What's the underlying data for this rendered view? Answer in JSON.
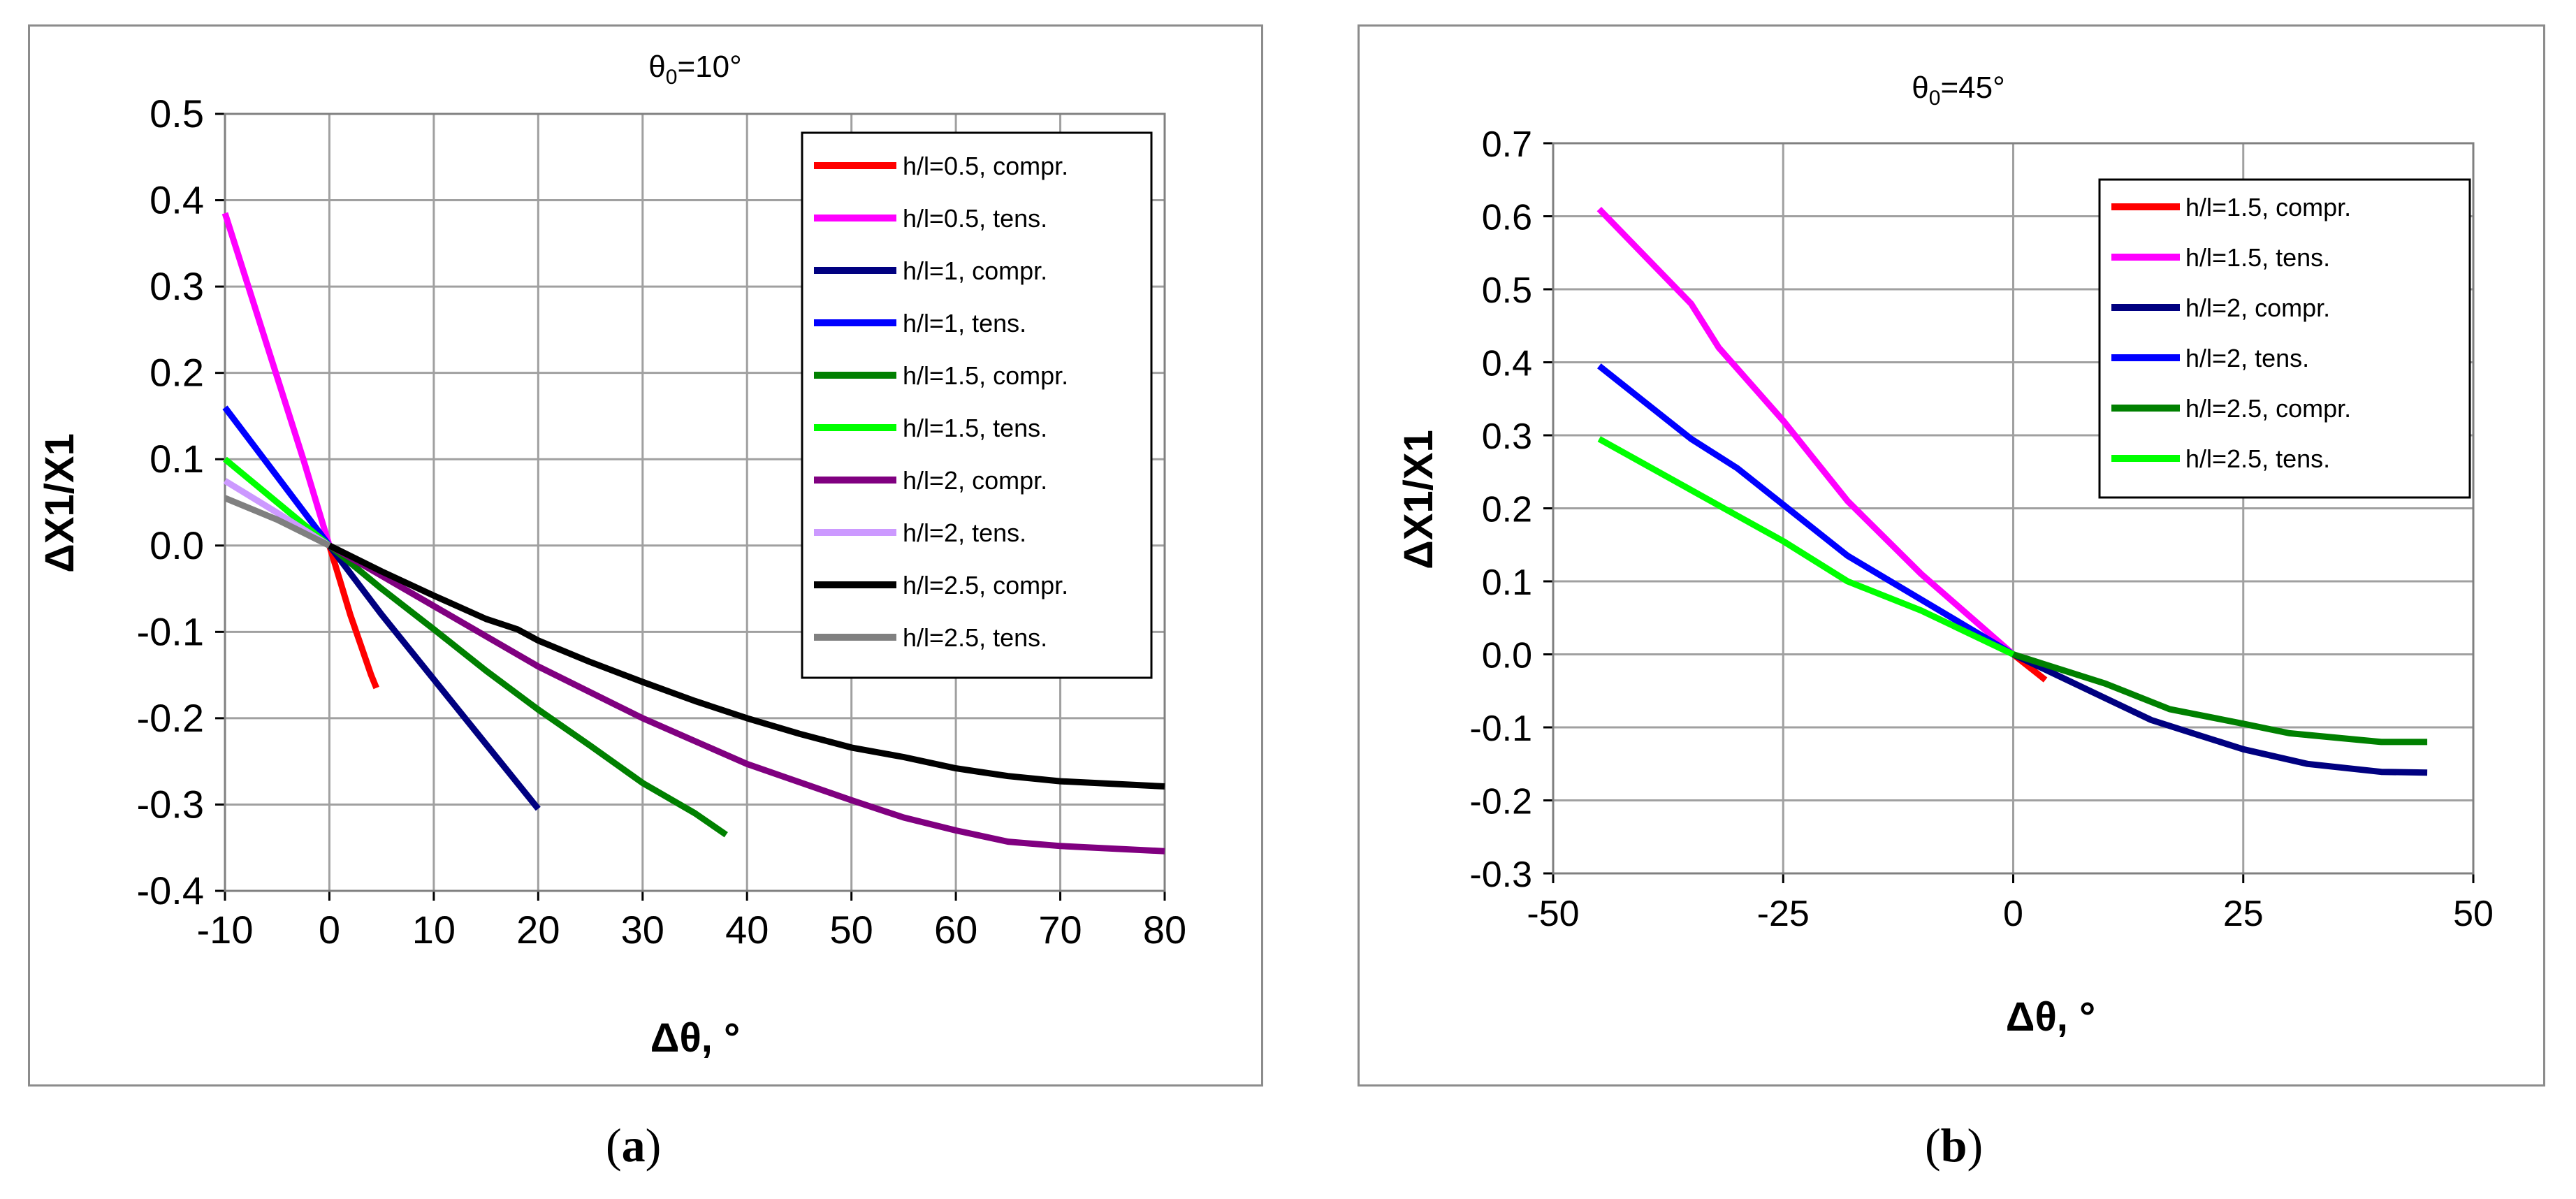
{
  "captions": {
    "a_open": "(",
    "a_letter": "a",
    "a_close": ")",
    "b_open": "(",
    "b_letter": "b",
    "b_close": ")"
  },
  "chart_data": [
    {
      "type": "line",
      "panel": "a",
      "title_prefix": "θ",
      "title_sub": "0",
      "title_suffix": "=10°",
      "xlabel": "Δθ, °",
      "ylabel": "ΔX1/X1",
      "xlim": [
        -10,
        80
      ],
      "ylim": [
        -0.4,
        0.5
      ],
      "xticks": [
        -10,
        0,
        10,
        20,
        30,
        40,
        50,
        60,
        70,
        80
      ],
      "yticks": [
        "0.5",
        "0.4",
        "0.3",
        "0.2",
        "0.1",
        "0.0",
        "-0.1",
        "-0.2",
        "-0.3",
        "-0.4"
      ],
      "grid": true,
      "legend_position": "top-right",
      "series": [
        {
          "name": "h/l=0.5, compr.",
          "color": "#ff0000",
          "points": [
            [
              0,
              0
            ],
            [
              1,
              -0.04
            ],
            [
              2,
              -0.08
            ],
            [
              3,
              -0.115
            ],
            [
              4,
              -0.15
            ],
            [
              4.5,
              -0.165
            ]
          ]
        },
        {
          "name": "h/l=0.5, tens.",
          "color": "#ff00ff",
          "points": [
            [
              -10,
              0.385
            ],
            [
              -7.5,
              0.29
            ],
            [
              -5,
              0.195
            ],
            [
              -2.5,
              0.1
            ],
            [
              0,
              0
            ]
          ]
        },
        {
          "name": "h/l=1, compr.",
          "color": "#000080",
          "points": [
            [
              0,
              0
            ],
            [
              5,
              -0.08
            ],
            [
              10,
              -0.155
            ],
            [
              15,
              -0.23
            ],
            [
              20,
              -0.305
            ]
          ]
        },
        {
          "name": "h/l=1, tens.",
          "color": "#0000ff",
          "points": [
            [
              -10,
              0.16
            ],
            [
              -5,
              0.08
            ],
            [
              0,
              0
            ]
          ]
        },
        {
          "name": "h/l=1.5, compr.",
          "color": "#008000",
          "points": [
            [
              0,
              0
            ],
            [
              5,
              -0.05
            ],
            [
              10,
              -0.097
            ],
            [
              15,
              -0.145
            ],
            [
              20,
              -0.19
            ],
            [
              25,
              -0.232
            ],
            [
              30,
              -0.275
            ],
            [
              35,
              -0.31
            ],
            [
              38,
              -0.335
            ]
          ]
        },
        {
          "name": "h/l=1.5, tens.",
          "color": "#00ff00",
          "points": [
            [
              -10,
              0.1
            ],
            [
              -5,
              0.05
            ],
            [
              0,
              0
            ]
          ]
        },
        {
          "name": "h/l=2, compr.",
          "color": "#800080",
          "points": [
            [
              0,
              0
            ],
            [
              10,
              -0.07
            ],
            [
              20,
              -0.14
            ],
            [
              30,
              -0.2
            ],
            [
              40,
              -0.253
            ],
            [
              50,
              -0.295
            ],
            [
              55,
              -0.315
            ],
            [
              60,
              -0.33
            ],
            [
              65,
              -0.343
            ],
            [
              70,
              -0.348
            ],
            [
              80,
              -0.354
            ]
          ]
        },
        {
          "name": "h/l=2, tens.",
          "color": "#cc99ff",
          "points": [
            [
              -10,
              0.075
            ],
            [
              -5,
              0.038
            ],
            [
              0,
              0
            ]
          ]
        },
        {
          "name": "h/l=2.5, compr.",
          "color": "#000000",
          "points": [
            [
              0,
              0
            ],
            [
              5,
              -0.03
            ],
            [
              10,
              -0.058
            ],
            [
              15,
              -0.085
            ],
            [
              18,
              -0.097
            ],
            [
              20,
              -0.11
            ],
            [
              25,
              -0.135
            ],
            [
              30,
              -0.158
            ],
            [
              35,
              -0.18
            ],
            [
              40,
              -0.2
            ],
            [
              45,
              -0.218
            ],
            [
              50,
              -0.234
            ],
            [
              55,
              -0.245
            ],
            [
              60,
              -0.258
            ],
            [
              65,
              -0.267
            ],
            [
              70,
              -0.273
            ],
            [
              80,
              -0.279
            ]
          ]
        },
        {
          "name": "h/l=2.5, tens.",
          "color": "#808080",
          "points": [
            [
              -10,
              0.055
            ],
            [
              -5,
              0.03
            ],
            [
              0,
              0
            ]
          ]
        }
      ]
    },
    {
      "type": "line",
      "panel": "b",
      "title_prefix": "θ",
      "title_sub": "0",
      "title_suffix": "=45°",
      "xlabel": "Δθ, °",
      "ylabel": "ΔX1/X1",
      "xlim": [
        -50,
        50
      ],
      "ylim": [
        -0.3,
        0.7
      ],
      "xticks": [
        -50,
        -25,
        0,
        25,
        50
      ],
      "yticks": [
        "0.7",
        "0.6",
        "0.5",
        "0.4",
        "0.3",
        "0.2",
        "0.1",
        "0.0",
        "-0.1",
        "-0.2",
        "-0.3"
      ],
      "grid": true,
      "legend_position": "top-right",
      "series": [
        {
          "name": "h/l=1.5, compr.",
          "color": "#ff0000",
          "points": [
            [
              0,
              0
            ],
            [
              1,
              -0.01
            ],
            [
              2,
              -0.02
            ],
            [
              3.5,
              -0.035
            ]
          ]
        },
        {
          "name": "h/l=1.5, tens.",
          "color": "#ff00ff",
          "points": [
            [
              -45,
              0.61
            ],
            [
              -40,
              0.545
            ],
            [
              -35,
              0.48
            ],
            [
              -32,
              0.42
            ],
            [
              -25,
              0.32
            ],
            [
              -18,
              0.21
            ],
            [
              -10,
              0.11
            ],
            [
              -5,
              0.055
            ],
            [
              0,
              0
            ]
          ]
        },
        {
          "name": "h/l=2, compr.",
          "color": "#000080",
          "points": [
            [
              0,
              0
            ],
            [
              5,
              -0.03
            ],
            [
              10,
              -0.06
            ],
            [
              15,
              -0.09
            ],
            [
              20,
              -0.11
            ],
            [
              25,
              -0.13
            ],
            [
              32,
              -0.15
            ],
            [
              40,
              -0.161
            ],
            [
              45,
              -0.162
            ]
          ]
        },
        {
          "name": "h/l=2, tens.",
          "color": "#0000ff",
          "points": [
            [
              -45,
              0.395
            ],
            [
              -40,
              0.345
            ],
            [
              -35,
              0.295
            ],
            [
              -30,
              0.255
            ],
            [
              -25,
              0.205
            ],
            [
              -18,
              0.135
            ],
            [
              -10,
              0.075
            ],
            [
              0,
              0
            ]
          ]
        },
        {
          "name": "h/l=2.5, compr.",
          "color": "#008000",
          "points": [
            [
              0,
              0
            ],
            [
              5,
              -0.02
            ],
            [
              10,
              -0.04
            ],
            [
              17,
              -0.075
            ],
            [
              25,
              -0.095
            ],
            [
              30,
              -0.108
            ],
            [
              40,
              -0.12
            ],
            [
              45,
              -0.12
            ]
          ]
        },
        {
          "name": "h/l=2.5, tens.",
          "color": "#00ff00",
          "points": [
            [
              -45,
              0.295
            ],
            [
              -40,
              0.26
            ],
            [
              -35,
              0.225
            ],
            [
              -30,
              0.19
            ],
            [
              -25,
              0.155
            ],
            [
              -18,
              0.1
            ],
            [
              -10,
              0.06
            ],
            [
              0,
              0
            ]
          ]
        }
      ]
    }
  ]
}
